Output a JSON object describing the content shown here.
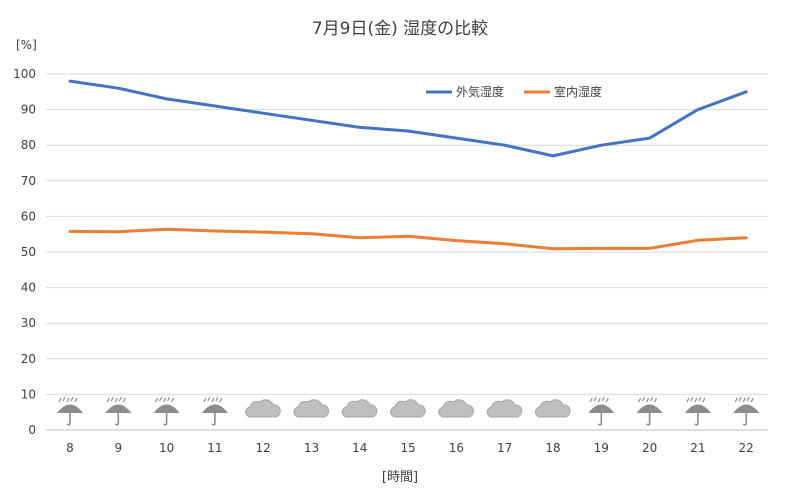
{
  "chart_data": {
    "type": "line",
    "title": "7月9日(金)  湿度の比較",
    "ylabel": "[%]",
    "xlabel": "[時間]",
    "categories": [
      "8",
      "9",
      "10",
      "11",
      "12",
      "13",
      "14",
      "15",
      "16",
      "17",
      "18",
      "19",
      "20",
      "21",
      "22"
    ],
    "series": [
      {
        "name": "外気湿度",
        "color": "#4472C4",
        "values": [
          98,
          96,
          93,
          91,
          89,
          87,
          85,
          84,
          82,
          80,
          77,
          80,
          82,
          90,
          95
        ]
      },
      {
        "name": "室内湿度",
        "color": "#ED7D31",
        "values": [
          55.8,
          55.7,
          56.4,
          55.9,
          55.6,
          55.1,
          54.0,
          54.4,
          53.2,
          52.3,
          50.9,
          51.0,
          51.0,
          53.3,
          54.0
        ]
      }
    ],
    "weather_icons": [
      "umbrella-rain-icon",
      "umbrella-rain-icon",
      "umbrella-rain-icon",
      "umbrella-rain-icon",
      "cloud-icon",
      "cloud-icon",
      "cloud-icon",
      "cloud-icon",
      "cloud-icon",
      "cloud-icon",
      "cloud-icon",
      "umbrella-rain-icon",
      "umbrella-rain-icon",
      "umbrella-rain-icon",
      "umbrella-rain-icon"
    ],
    "ylim": [
      0,
      100
    ],
    "yticks": [
      0,
      10,
      20,
      30,
      40,
      50,
      60,
      70,
      80,
      90,
      100
    ],
    "grid": true,
    "legend_position": "top-right"
  }
}
